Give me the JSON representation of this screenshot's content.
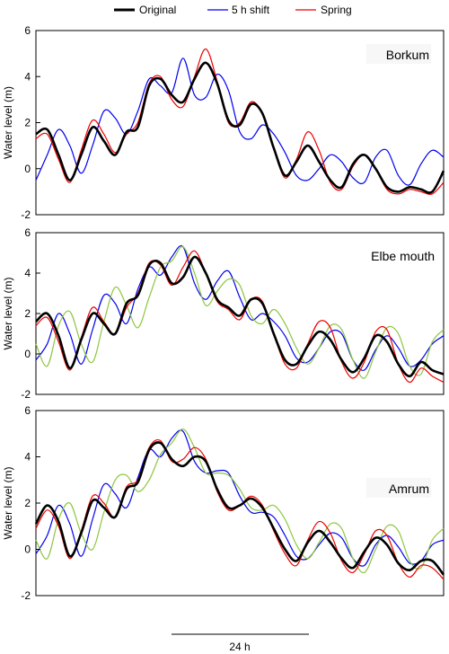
{
  "legend": [
    {
      "label": "Original",
      "color": "#000000"
    },
    {
      "label": "5 h shift",
      "color": "#0000ee"
    },
    {
      "label": "Spring",
      "color": "#ee0000"
    }
  ],
  "scale_bar": {
    "label": "24 h"
  },
  "chart_data": [
    {
      "type": "line",
      "title": "Borkum",
      "xlabel": "",
      "ylabel": "Water level (m)",
      "ylim": [
        -2,
        6
      ],
      "yticks": [
        -2,
        0,
        2,
        4,
        6
      ],
      "xlim": [
        0,
        72
      ],
      "x": [
        0,
        2,
        4,
        6,
        8,
        10,
        12,
        14,
        16,
        18,
        20,
        22,
        24,
        26,
        28,
        30,
        32,
        34,
        36,
        38,
        40,
        42,
        44,
        46,
        48,
        50,
        52,
        54,
        56,
        58,
        60,
        62,
        64,
        66,
        68,
        70,
        72
      ],
      "series": [
        {
          "name": "Original",
          "color": "#000000",
          "values": [
            1.5,
            1.7,
            0.6,
            -0.5,
            0.6,
            1.8,
            1.2,
            0.6,
            1.6,
            1.8,
            3.6,
            3.9,
            3.2,
            2.9,
            3.9,
            4.6,
            3.7,
            2.1,
            1.9,
            2.8,
            2.4,
            0.9,
            -0.3,
            0.3,
            1.0,
            0.3,
            -0.5,
            -0.8,
            0.2,
            0.6,
            0.0,
            -0.8,
            -1.0,
            -0.8,
            -0.9,
            -1.0,
            -0.1
          ]
        },
        {
          "name": "5 h shift",
          "color": "#0000ee",
          "values": [
            -0.5,
            0.6,
            1.7,
            1.0,
            -0.2,
            1.0,
            2.5,
            2.2,
            1.5,
            2.5,
            3.9,
            3.6,
            3.3,
            4.8,
            3.2,
            3.1,
            4.1,
            3.4,
            1.6,
            1.3,
            1.9,
            1.5,
            0.7,
            -0.3,
            -0.5,
            0.0,
            0.6,
            0.3,
            -0.4,
            -0.6,
            0.5,
            0.8,
            -0.3,
            -0.7,
            0.2,
            0.8,
            0.5
          ]
        },
        {
          "name": "Spring",
          "color": "#ee0000",
          "values": [
            1.3,
            1.5,
            0.4,
            -0.6,
            0.8,
            2.1,
            1.5,
            0.7,
            1.5,
            2.0,
            3.7,
            4.0,
            3.0,
            2.7,
            4.0,
            5.2,
            3.8,
            2.0,
            2.0,
            2.9,
            2.4,
            0.9,
            -0.4,
            0.4,
            1.6,
            0.8,
            -0.6,
            -0.9,
            0.1,
            0.6,
            0.0,
            -0.9,
            -1.1,
            -0.9,
            -1.0,
            -1.1,
            -0.6
          ]
        }
      ]
    },
    {
      "type": "line",
      "title": "Elbe mouth",
      "xlabel": "",
      "ylabel": "Water level (m)",
      "ylim": [
        -2,
        6
      ],
      "yticks": [
        -2,
        0,
        2,
        4,
        6
      ],
      "xlim": [
        0,
        72
      ],
      "x": [
        0,
        2,
        4,
        6,
        8,
        10,
        12,
        14,
        16,
        18,
        20,
        22,
        24,
        26,
        28,
        30,
        32,
        34,
        36,
        38,
        40,
        42,
        44,
        46,
        48,
        50,
        52,
        54,
        56,
        58,
        60,
        62,
        64,
        66,
        68,
        70,
        72
      ],
      "series": [
        {
          "name": "Original",
          "color": "#000000",
          "values": [
            1.6,
            2.0,
            0.9,
            -0.7,
            0.7,
            2.0,
            1.5,
            1.0,
            2.5,
            2.9,
            4.4,
            4.5,
            3.5,
            3.8,
            4.8,
            4.0,
            2.7,
            2.3,
            1.9,
            2.7,
            2.5,
            1.0,
            -0.3,
            -0.5,
            0.4,
            1.1,
            0.7,
            -0.3,
            -0.9,
            -0.2,
            0.9,
            0.6,
            -0.5,
            -1.1,
            -0.4,
            -0.8,
            -1.0
          ]
        },
        {
          "name": "5 h shift",
          "color": "#0000ee",
          "values": [
            -0.3,
            0.5,
            2.0,
            1.0,
            -0.5,
            1.2,
            2.9,
            2.5,
            1.5,
            3.2,
            4.3,
            3.9,
            4.8,
            5.3,
            3.5,
            2.7,
            3.6,
            4.1,
            2.8,
            1.7,
            2.0,
            1.6,
            0.9,
            -0.2,
            -0.4,
            0.3,
            1.1,
            1.0,
            -0.3,
            -0.8,
            0.2,
            0.9,
            0.3,
            -0.6,
            -0.3,
            0.5,
            0.9
          ]
        },
        {
          "name": "",
          "color": "#8dc63f",
          "values": [
            0.5,
            -0.6,
            1.4,
            2.1,
            0.5,
            -0.4,
            1.6,
            3.3,
            2.4,
            1.3,
            2.8,
            4.3,
            4.6,
            5.3,
            4.0,
            2.4,
            3.1,
            3.7,
            3.4,
            1.9,
            1.5,
            2.2,
            1.5,
            0.3,
            -0.5,
            0.3,
            1.4,
            1.2,
            -0.3,
            -1.2,
            0.1,
            1.3,
            1.0,
            -0.6,
            -1.0,
            0.6,
            1.2
          ]
        },
        {
          "name": "Spring",
          "color": "#ee0000",
          "values": [
            1.4,
            1.8,
            0.6,
            -0.8,
            0.8,
            2.3,
            1.6,
            1.0,
            2.3,
            3.0,
            4.5,
            4.4,
            3.4,
            4.3,
            5.1,
            4.0,
            2.6,
            2.2,
            1.7,
            2.7,
            2.6,
            1.0,
            -0.5,
            -0.7,
            0.5,
            1.6,
            1.3,
            -0.4,
            -1.2,
            -0.4,
            1.1,
            1.2,
            -0.5,
            -1.4,
            -0.7,
            -1.1,
            -1.4
          ]
        }
      ]
    },
    {
      "type": "line",
      "title": "Amrum",
      "xlabel": "",
      "ylabel": "Water level (m)",
      "ylim": [
        -2,
        6
      ],
      "yticks": [
        -2,
        0,
        2,
        4,
        6
      ],
      "xlim": [
        0,
        72
      ],
      "x": [
        0,
        2,
        4,
        6,
        8,
        10,
        12,
        14,
        16,
        18,
        20,
        22,
        24,
        26,
        28,
        30,
        32,
        34,
        36,
        38,
        40,
        42,
        44,
        46,
        48,
        50,
        52,
        54,
        56,
        58,
        60,
        62,
        64,
        66,
        68,
        70,
        72
      ],
      "series": [
        {
          "name": "Original",
          "color": "#000000",
          "values": [
            1.1,
            1.9,
            1.2,
            -0.3,
            0.7,
            2.1,
            1.8,
            1.4,
            2.6,
            2.9,
            4.3,
            4.6,
            3.9,
            3.6,
            4.0,
            3.8,
            2.6,
            1.8,
            1.9,
            2.2,
            1.8,
            0.9,
            0.0,
            -0.5,
            0.3,
            0.8,
            0.3,
            -0.4,
            -0.8,
            -0.1,
            0.5,
            0.2,
            -0.6,
            -0.9,
            -0.5,
            -0.5,
            -1.1
          ]
        },
        {
          "name": "5 h shift",
          "color": "#0000ee",
          "values": [
            -0.2,
            0.6,
            1.9,
            1.1,
            -0.3,
            1.3,
            2.8,
            2.4,
            1.8,
            3.1,
            4.3,
            4.0,
            4.8,
            5.1,
            3.8,
            3.3,
            3.4,
            3.3,
            2.3,
            1.6,
            1.6,
            1.4,
            0.6,
            -0.3,
            -0.4,
            0.2,
            0.7,
            0.5,
            -0.4,
            -0.7,
            0.2,
            0.6,
            0.1,
            -0.6,
            -0.5,
            0.2,
            0.4
          ]
        },
        {
          "name": "",
          "color": "#8dc63f",
          "values": [
            0.4,
            -0.4,
            1.3,
            2.0,
            0.7,
            0.0,
            1.6,
            3.0,
            3.2,
            2.5,
            3.0,
            4.1,
            4.6,
            5.2,
            4.4,
            3.3,
            3.3,
            3.2,
            2.6,
            1.8,
            1.7,
            1.9,
            1.3,
            0.2,
            -0.4,
            0.3,
            1.1,
            0.9,
            -0.4,
            -1.0,
            0.0,
            1.0,
            0.8,
            -0.5,
            -0.8,
            0.4,
            0.9
          ]
        },
        {
          "name": "Spring",
          "color": "#ee0000",
          "values": [
            0.9,
            1.7,
            1.0,
            -0.4,
            0.8,
            2.3,
            2.0,
            1.4,
            2.7,
            3.0,
            4.4,
            4.7,
            3.8,
            3.9,
            4.4,
            3.9,
            2.5,
            1.7,
            1.9,
            2.3,
            1.9,
            0.8,
            -0.2,
            -0.7,
            0.4,
            1.2,
            0.7,
            -0.5,
            -1.0,
            -0.2,
            0.8,
            0.6,
            -0.6,
            -1.2,
            -0.7,
            -0.8,
            -1.3
          ]
        }
      ]
    }
  ]
}
